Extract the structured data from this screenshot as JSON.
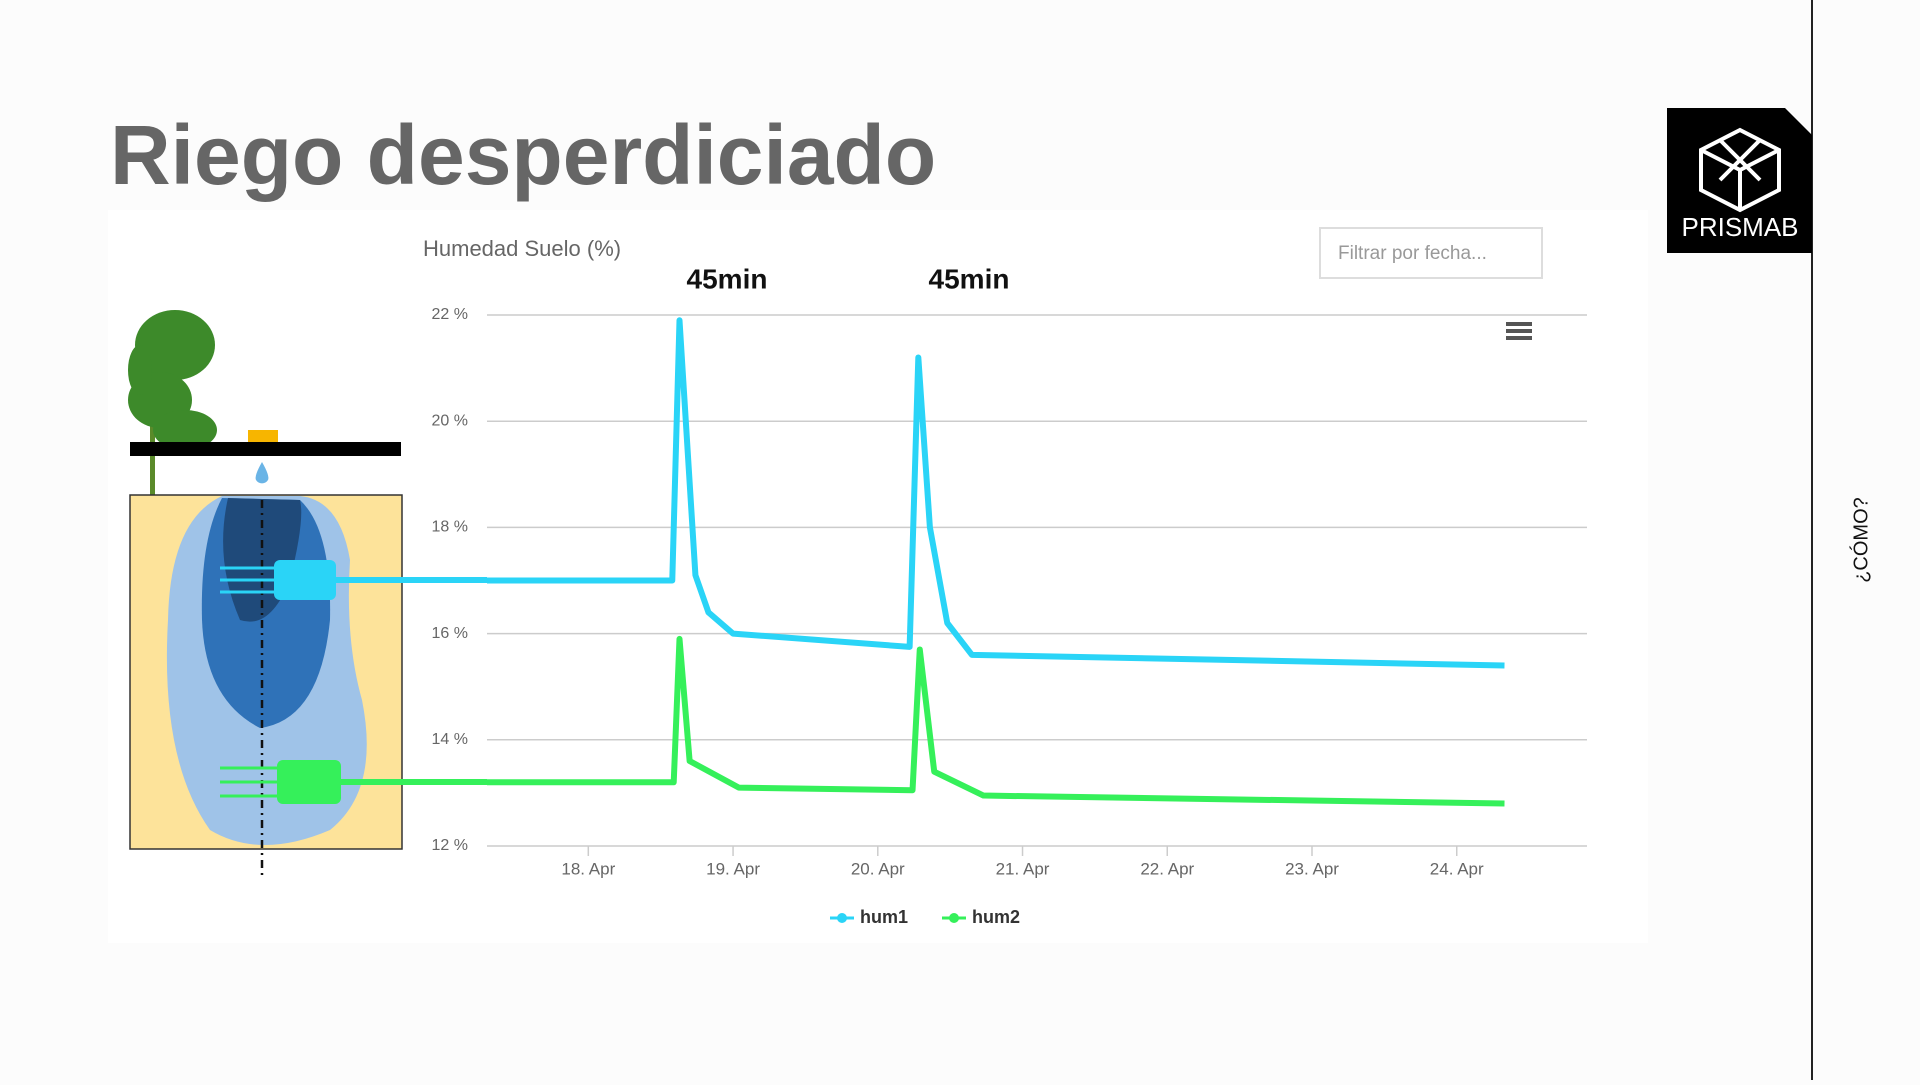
{
  "slide": {
    "heading": "Riego desperdiciado",
    "logo": "PRISMAB",
    "side_label": "¿CÓMO?",
    "filter_placeholder": "Filtrar por fecha..."
  },
  "chart_data": {
    "type": "line",
    "title": "Humedad Suelo (%)",
    "annotations": [
      "45min",
      "45min"
    ],
    "series": [
      {
        "name": "hum1",
        "color": "#2ad4f7",
        "x": [
          17.3,
          18.58,
          18.63,
          18.74,
          18.83,
          19.0,
          20.22,
          20.28,
          20.36,
          20.48,
          20.65,
          24.33
        ],
        "values": [
          17.0,
          17.0,
          21.9,
          17.1,
          16.4,
          16.0,
          15.75,
          21.2,
          18.0,
          16.2,
          15.6,
          15.4
        ]
      },
      {
        "name": "hum2",
        "color": "#35f05a",
        "x": [
          17.3,
          18.59,
          18.63,
          18.7,
          19.04,
          20.24,
          20.29,
          20.39,
          20.73,
          24.33
        ],
        "values": [
          13.2,
          13.2,
          15.9,
          13.6,
          13.1,
          13.05,
          15.7,
          13.4,
          12.95,
          12.8
        ]
      }
    ],
    "xlim": [
      17.3,
      24.9
    ],
    "xticks": [
      {
        "value": 18,
        "label": "18. Apr"
      },
      {
        "value": 19,
        "label": "19. Apr"
      },
      {
        "value": 20,
        "label": "20. Apr"
      },
      {
        "value": 21,
        "label": "21. Apr"
      },
      {
        "value": 22,
        "label": "22. Apr"
      },
      {
        "value": 23,
        "label": "23. Apr"
      },
      {
        "value": 24,
        "label": "24. Apr"
      }
    ],
    "ylim": [
      12,
      22
    ],
    "yticks": [
      {
        "value": 12,
        "label": "12 %"
      },
      {
        "value": 14,
        "label": "14 %"
      },
      {
        "value": 16,
        "label": "16 %"
      },
      {
        "value": 18,
        "label": "18 %"
      },
      {
        "value": 20,
        "label": "20 %"
      },
      {
        "value": 22,
        "label": "22 %"
      }
    ],
    "grid": true
  }
}
